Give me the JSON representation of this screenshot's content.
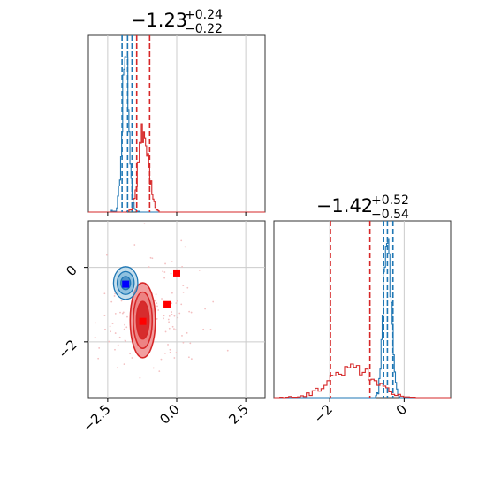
{
  "chart_data": {
    "type": "corner",
    "x_param_ticks": [
      "−2.5",
      "0.0",
      "2.5"
    ],
    "y_param_ticks": [
      "−2",
      "0"
    ],
    "x_param_tick_values": [
      -2.5,
      0.0,
      2.5
    ],
    "y_param_tick_values": [
      -2,
      0
    ],
    "x_param_range": [
      -3.2,
      3.2
    ],
    "y_param_range": [
      -3.5,
      1.25
    ],
    "grid": true,
    "colors": {
      "red": "#d62728",
      "blue": "#1f77b4",
      "red_fill": "#f19a9b",
      "red_marker": "#ff0000",
      "blue_marker": "#0000ff"
    },
    "panels": [
      {
        "position": "top-left",
        "title": {
          "main": "−1.23",
          "plus": "+0.24",
          "minus": "−0.22"
        },
        "quantile_lines": {
          "red": [
            -1.45,
            -0.98
          ],
          "blue": [
            -1.98,
            -1.78,
            -1.62
          ]
        },
        "histograms": {
          "blue": {
            "center": -1.85,
            "width": 0.12
          },
          "red": {
            "center": -1.2,
            "width": 0.18
          }
        }
      },
      {
        "position": "bottom-left",
        "contours": {
          "red": {
            "center": [
              -1.23,
              -1.42
            ],
            "sigma": [
              0.24,
              0.53
            ]
          },
          "blue": {
            "center": [
              -1.85,
              -0.42
            ],
            "sigma": [
              0.1,
              0.1
            ]
          }
        },
        "markers": {
          "red": [
            [
              -1.23,
              -1.45
            ],
            [
              -0.35,
              -1.0
            ],
            [
              0.0,
              -0.15
            ]
          ],
          "blue": [
            [
              -1.85,
              -0.45
            ]
          ]
        }
      },
      {
        "position": "bottom-right",
        "title": {
          "main": "−1.42",
          "plus": "+0.52",
          "minus": "−0.54"
        },
        "x_ticks": [
          "−2",
          "0"
        ],
        "x_tick_values": [
          -2,
          0
        ],
        "x_range": [
          -3.5,
          1.25
        ],
        "quantile_lines": {
          "red": [
            -1.98,
            -0.92
          ],
          "blue": [
            -0.55,
            -0.45,
            -0.3
          ]
        },
        "histograms": {
          "blue": {
            "center": -0.45,
            "width": 0.1
          },
          "red": {
            "center": -1.42,
            "width": 0.55
          }
        }
      }
    ]
  }
}
